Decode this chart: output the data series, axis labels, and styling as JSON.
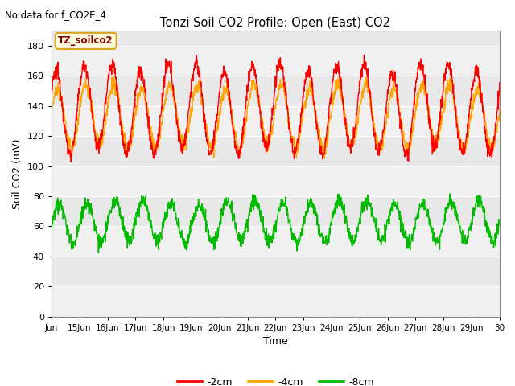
{
  "title": "Tonzi Soil CO2 Profile: Open (East) CO2",
  "no_data_text": "No data for f_CO2E_4",
  "ylabel": "Soil CO2 (mV)",
  "xlabel": "Time",
  "legend_label": "TZ_soilco2",
  "series_labels": [
    "-2cm",
    "-4cm",
    "-8cm"
  ],
  "series_colors": [
    "#ff0000",
    "#ffa500",
    "#00bb00"
  ],
  "ylim": [
    0,
    190
  ],
  "yticks": [
    0,
    20,
    40,
    60,
    80,
    100,
    120,
    140,
    160,
    180
  ],
  "plot_bg_color": "#e8e8e8",
  "band_light_color": "#d8d8d8",
  "band_white_color": "#f0f0f0",
  "background_color": "#ffffff",
  "num_days": 16,
  "start_day": 14,
  "points_per_day": 96,
  "red_mean": 138,
  "red_amp": 28,
  "orange_mean": 133,
  "orange_amp": 20,
  "green_mean": 63,
  "green_amp": 13,
  "noise_scale": 2.5,
  "figwidth": 6.4,
  "figheight": 4.8,
  "dpi": 100
}
